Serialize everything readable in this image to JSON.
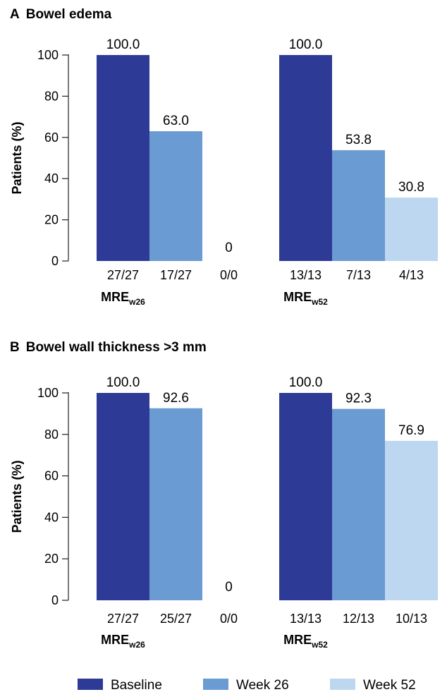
{
  "colors": {
    "baseline": "#2e3b96",
    "week26": "#6a9bd2",
    "week52": "#bdd7f0",
    "axis": "#222222"
  },
  "chart_data": [
    {
      "type": "bar",
      "panel_letter": "A",
      "title": "Bowel edema",
      "ylabel": "Patients (%)",
      "ylim": [
        0,
        100
      ],
      "yticks": [
        0,
        20,
        40,
        60,
        80,
        100
      ],
      "groups": [
        {
          "main": "MRE",
          "sub": "w26",
          "bars": [
            {
              "series": "Baseline",
              "value": 100.0,
              "label": "100.0",
              "category": "27/27"
            },
            {
              "series": "Week 26",
              "value": 63.0,
              "label": "63.0",
              "category": "17/27"
            },
            {
              "series": "Week 52",
              "value": 0,
              "label": "0",
              "category": "0/0"
            }
          ]
        },
        {
          "main": "MRE",
          "sub": "w52",
          "bars": [
            {
              "series": "Baseline",
              "value": 100.0,
              "label": "100.0",
              "category": "13/13"
            },
            {
              "series": "Week 26",
              "value": 53.8,
              "label": "53.8",
              "category": "7/13"
            },
            {
              "series": "Week 52",
              "value": 30.8,
              "label": "30.8",
              "category": "4/13"
            }
          ]
        }
      ]
    },
    {
      "type": "bar",
      "panel_letter": "B",
      "title": "Bowel wall thickness >3 mm",
      "ylabel": "Patients (%)",
      "ylim": [
        0,
        100
      ],
      "yticks": [
        0,
        20,
        40,
        60,
        80,
        100
      ],
      "groups": [
        {
          "main": "MRE",
          "sub": "w26",
          "bars": [
            {
              "series": "Baseline",
              "value": 100.0,
              "label": "100.0",
              "category": "27/27"
            },
            {
              "series": "Week 26",
              "value": 92.6,
              "label": "92.6",
              "category": "25/27"
            },
            {
              "series": "Week 52",
              "value": 0,
              "label": "0",
              "category": "0/0"
            }
          ]
        },
        {
          "main": "MRE",
          "sub": "w52",
          "bars": [
            {
              "series": "Baseline",
              "value": 100.0,
              "label": "100.0",
              "category": "13/13"
            },
            {
              "series": "Week 26",
              "value": 92.3,
              "label": "92.3",
              "category": "12/13"
            },
            {
              "series": "Week 52",
              "value": 76.9,
              "label": "76.9",
              "category": "10/13"
            }
          ]
        }
      ]
    }
  ],
  "legend": {
    "position": "bottom",
    "items": [
      {
        "label": "Baseline",
        "color_key": "baseline"
      },
      {
        "label": "Week 26",
        "color_key": "week26"
      },
      {
        "label": "Week 52",
        "color_key": "week52"
      }
    ]
  }
}
